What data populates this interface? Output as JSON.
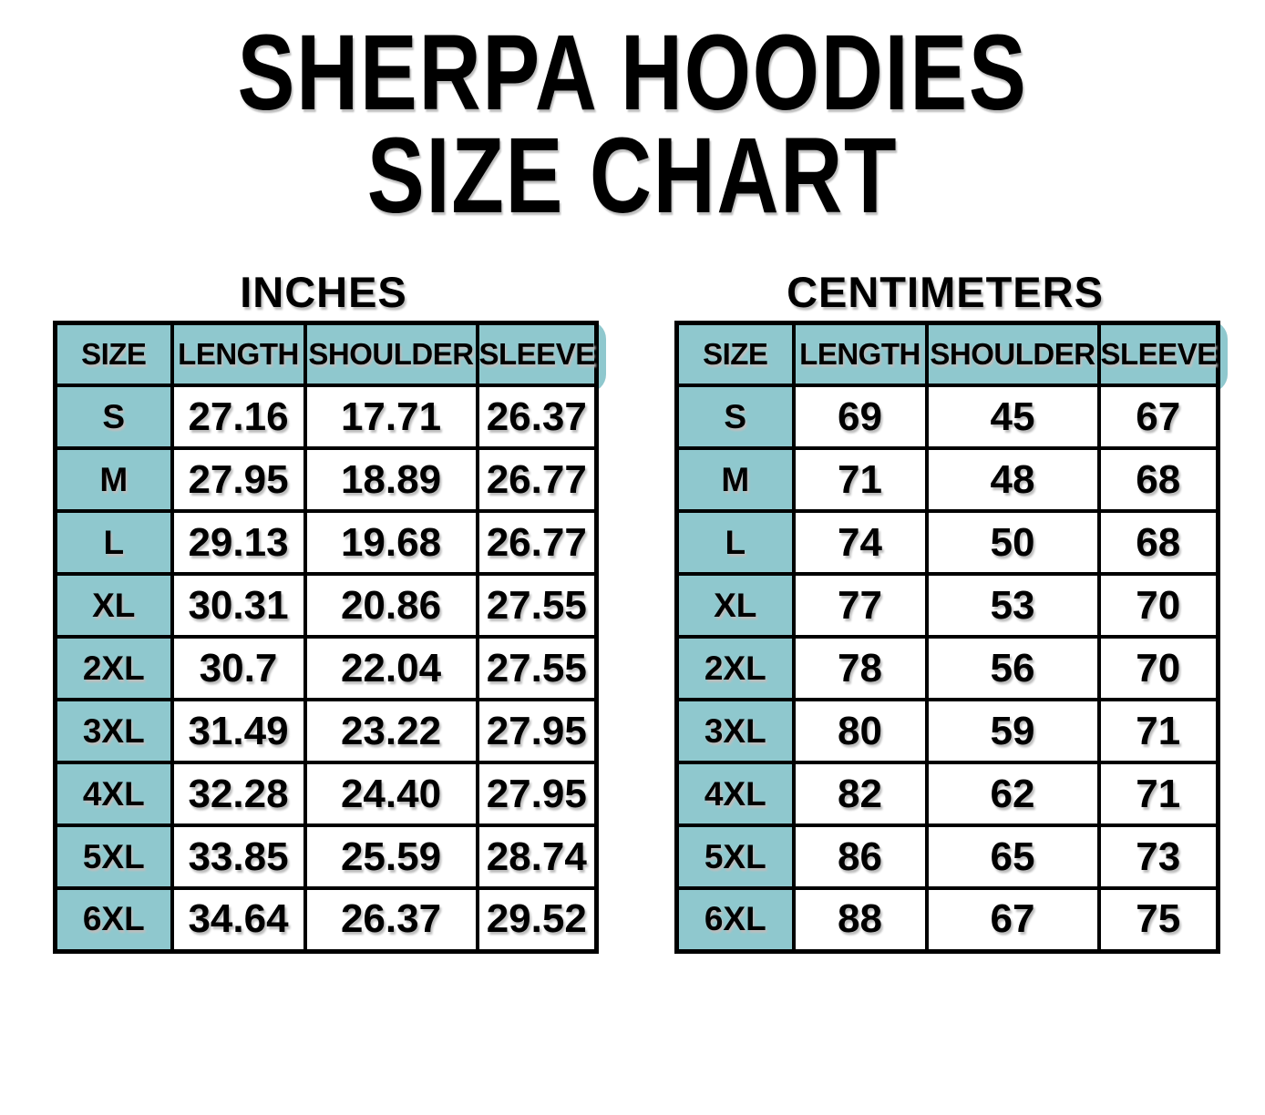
{
  "title": {
    "line1": "SHERPA HOODIES",
    "line2": "SIZE CHART"
  },
  "columns": [
    "SIZE",
    "LENGTH",
    "SHOULDER",
    "SLEEVE"
  ],
  "tables": [
    {
      "unit_label": "INCHES",
      "rows": [
        [
          "S",
          "27.16",
          "17.71",
          "26.37"
        ],
        [
          "M",
          "27.95",
          "18.89",
          "26.77"
        ],
        [
          "L",
          "29.13",
          "19.68",
          "26.77"
        ],
        [
          "XL",
          "30.31",
          "20.86",
          "27.55"
        ],
        [
          "2XL",
          "30.7",
          "22.04",
          "27.55"
        ],
        [
          "3XL",
          "31.49",
          "23.22",
          "27.95"
        ],
        [
          "4XL",
          "32.28",
          "24.40",
          "27.95"
        ],
        [
          "5XL",
          "33.85",
          "25.59",
          "28.74"
        ],
        [
          "6XL",
          "34.64",
          "26.37",
          "29.52"
        ]
      ]
    },
    {
      "unit_label": "CENTIMETERS",
      "rows": [
        [
          "S",
          "69",
          "45",
          "67"
        ],
        [
          "M",
          "71",
          "48",
          "68"
        ],
        [
          "L",
          "74",
          "50",
          "68"
        ],
        [
          "XL",
          "77",
          "53",
          "70"
        ],
        [
          "2XL",
          "78",
          "56",
          "70"
        ],
        [
          "3XL",
          "80",
          "59",
          "71"
        ],
        [
          "4XL",
          "82",
          "62",
          "71"
        ],
        [
          "5XL",
          "86",
          "65",
          "73"
        ],
        [
          "6XL",
          "88",
          "67",
          "75"
        ]
      ]
    }
  ],
  "colors": {
    "header_teal": "#8fc8ce",
    "border_black": "#000000",
    "text_shadow_gray": "#bdbdbd",
    "background": "#ffffff"
  }
}
